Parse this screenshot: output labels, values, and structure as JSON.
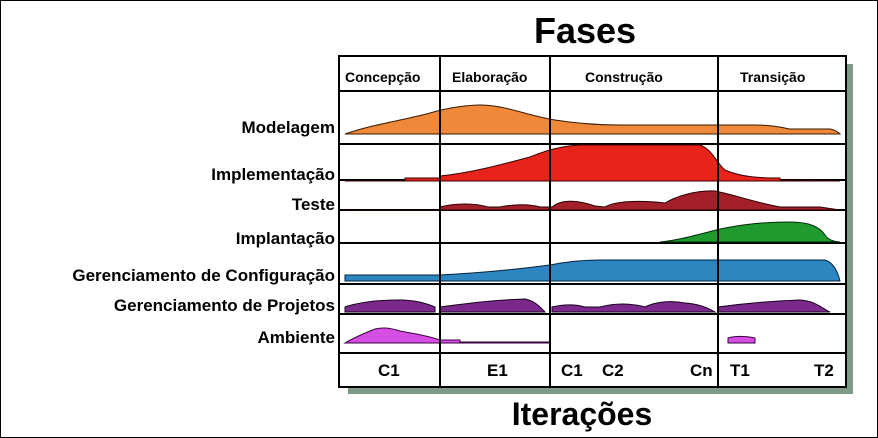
{
  "title": "Fases",
  "subtitle": "Iterações",
  "phases": [
    "Concepção",
    "Elaboração",
    "Construção",
    "Transição"
  ],
  "iterations": [
    "C1",
    "E1",
    "C1",
    "C2",
    "Cn",
    "T1",
    "T2"
  ],
  "disciplines": [
    {
      "label": "Modelagem",
      "color": "#f0883a"
    },
    {
      "label": "Implementação",
      "color": "#e8231b"
    },
    {
      "label": "Teste",
      "color": "#a31f2a"
    },
    {
      "label": "Implantação",
      "color": "#1f9a2e"
    },
    {
      "label": "Gerenciamento de Configuração",
      "color": "#2e86c1"
    },
    {
      "label": "Gerenciamento de Projetos",
      "color": "#7b2a8c"
    },
    {
      "label": "Ambiente",
      "color": "#d54fe3"
    }
  ]
}
